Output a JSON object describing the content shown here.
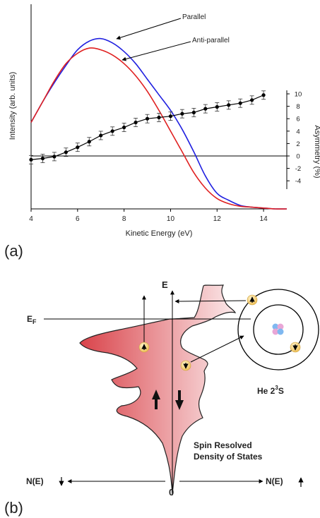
{
  "panel_a": {
    "label": "(a)",
    "annotations": {
      "parallel": "Parallel",
      "anti_parallel": "Anti-parallel"
    },
    "colors": {
      "parallel": "#2020e0",
      "anti_parallel": "#e02020",
      "asymmetry": "#000000"
    }
  },
  "panel_b": {
    "label": "(b)",
    "e_axis": "E",
    "fermi": {
      "main": "E",
      "sub": "F"
    },
    "atom": {
      "text": "He 2",
      "sup": "3",
      "suffix": "S"
    },
    "dos_title_line1": "Spin Resolved",
    "dos_title_line2": "Density of States",
    "n_down": "N(E)",
    "n_up": "N(E)",
    "zero": "0",
    "colors": {
      "fill_dark": "#d9434a",
      "fill_light": "#fbe9ea",
      "electron": "#f7d27a"
    }
  },
  "chart_data": [
    {
      "type": "line",
      "xlabel": "Kinetic Energy (eV)",
      "ylabel": "Intensity (arb. units)",
      "y2label": "Asymmetry (%)",
      "xlim": [
        4,
        15
      ],
      "x_ticks": [
        4,
        6,
        8,
        10,
        12,
        14
      ],
      "y2lim": [
        -7,
        13
      ],
      "y2_ticks": [
        -4,
        -2,
        0,
        2,
        4,
        6,
        8,
        10
      ],
      "grid": false,
      "series": [
        {
          "name": "Parallel",
          "color": "#2020e0",
          "x": [
            4.0,
            4.5,
            5.0,
            5.5,
            6.0,
            6.5,
            7.0,
            7.5,
            8.0,
            8.5,
            9.0,
            9.5,
            10.0,
            10.5,
            11.0,
            11.5,
            12.0,
            12.5,
            13.0,
            13.5,
            14.0,
            14.5,
            15.0
          ],
          "y": [
            0.5,
            0.62,
            0.73,
            0.83,
            0.92,
            0.97,
            0.985,
            0.96,
            0.91,
            0.84,
            0.75,
            0.66,
            0.57,
            0.46,
            0.33,
            0.19,
            0.09,
            0.05,
            0.02,
            0.01,
            0.005,
            0.0,
            0.0
          ]
        },
        {
          "name": "Anti-parallel",
          "color": "#e02020",
          "x": [
            4.0,
            4.5,
            5.0,
            5.5,
            6.0,
            6.5,
            7.0,
            7.5,
            8.0,
            8.5,
            9.0,
            9.5,
            10.0,
            10.5,
            11.0,
            11.5,
            12.0,
            12.5,
            13.0,
            13.5,
            14.0,
            14.5,
            15.0
          ],
          "y": [
            0.5,
            0.62,
            0.74,
            0.84,
            0.9,
            0.93,
            0.92,
            0.89,
            0.84,
            0.77,
            0.68,
            0.57,
            0.45,
            0.33,
            0.21,
            0.12,
            0.06,
            0.03,
            0.015,
            0.01,
            0.005,
            0.0,
            0.0
          ]
        },
        {
          "name": "Asymmetry",
          "axis": "y2",
          "color": "#000000",
          "x": [
            4.0,
            4.5,
            5.0,
            5.5,
            6.0,
            6.5,
            7.0,
            7.5,
            8.0,
            8.5,
            9.0,
            9.5,
            10.0,
            10.5,
            11.0,
            11.5,
            12.0,
            12.5,
            13.0,
            13.5,
            14.0
          ],
          "y": [
            -0.6,
            -0.4,
            -0.1,
            0.6,
            1.4,
            2.3,
            3.3,
            4.0,
            4.6,
            5.4,
            6.0,
            6.2,
            6.4,
            6.8,
            7.0,
            7.6,
            7.9,
            8.2,
            8.5,
            9.0,
            9.8
          ]
        }
      ]
    }
  ]
}
